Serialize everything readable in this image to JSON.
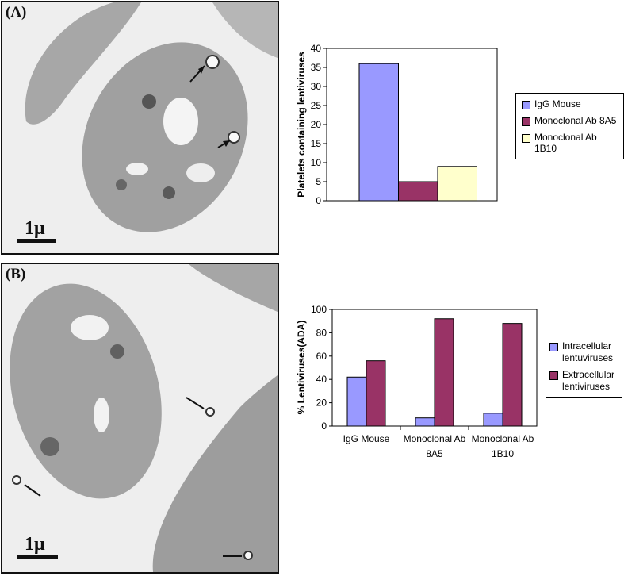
{
  "panel_a": {
    "label": "(A)",
    "scale_label": "1μ"
  },
  "panel_b": {
    "label": "(B)",
    "scale_label": "1μ"
  },
  "colors": {
    "blue": "#9999ff",
    "maroon": "#993366",
    "cream": "#ffffcc"
  },
  "chart_data": [
    {
      "type": "bar",
      "title": "",
      "xlabel": "",
      "ylabel": "Platelets containing lentiviruses",
      "ylim": [
        0,
        40
      ],
      "yticks": [
        "0",
        "5",
        "10",
        "15",
        "20",
        "25",
        "30",
        "35",
        "40"
      ],
      "series": [
        {
          "name": "IgG Mouse",
          "values": [
            36
          ],
          "color": "#9999ff"
        },
        {
          "name": "Monoclonal Ab 8A5",
          "values": [
            5
          ],
          "color": "#993366"
        },
        {
          "name": "Monoclonal Ab 1B10",
          "values": [
            9
          ],
          "color": "#ffffcc"
        }
      ],
      "legend_position": "right"
    },
    {
      "type": "bar",
      "title": "",
      "xlabel": "",
      "ylabel": "% Lentiviruses(ADA)",
      "ylim": [
        0,
        100
      ],
      "yticks": [
        "0",
        "20",
        "40",
        "60",
        "80",
        "100"
      ],
      "categories": [
        [
          "IgG Mouse"
        ],
        [
          "Monoclonal Ab",
          "8A5"
        ],
        [
          "Monoclonal Ab",
          "1B10"
        ]
      ],
      "series": [
        {
          "name": "Intracellular lentuviruses",
          "legend_lines": [
            "Intracellular",
            "lentuviruses"
          ],
          "values": [
            42,
            7,
            11
          ],
          "color": "#9999ff"
        },
        {
          "name": "Extracellular lentiviruses",
          "legend_lines": [
            "Extracellular",
            "lentiviruses"
          ],
          "values": [
            56,
            92,
            88
          ],
          "color": "#993366"
        }
      ],
      "legend_position": "right"
    }
  ]
}
